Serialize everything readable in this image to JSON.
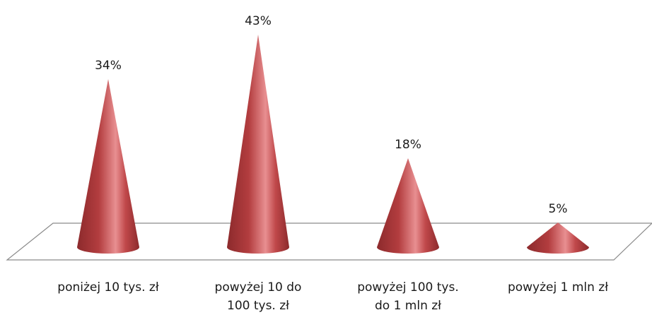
{
  "chart_data": {
    "type": "bar",
    "mark_shape": "3d-cone",
    "categories": [
      [
        "poniżej 10 tys. zł"
      ],
      [
        "powyżej 10 do",
        "100 tys. zł"
      ],
      [
        "powyżej 100 tys.",
        "do 1 mln zł"
      ],
      [
        "powyżej 1 mln zł"
      ]
    ],
    "values": [
      34,
      43,
      18,
      5
    ],
    "value_labels": [
      "34%",
      "43%",
      "18%",
      "5%"
    ],
    "title": "",
    "xlabel": "",
    "ylabel": "",
    "ylim": [
      0,
      45
    ],
    "grid": false,
    "legend": "none",
    "colors": {
      "cone_dark": "#8c2a2c",
      "cone_mid": "#c0484a",
      "cone_light": "#f0a0a2",
      "floor_stroke": "#8a8a8a"
    }
  }
}
